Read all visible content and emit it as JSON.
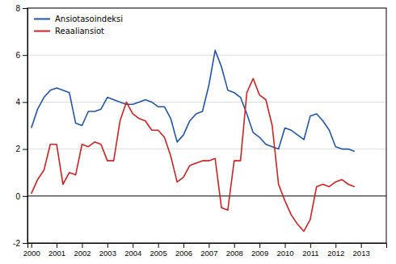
{
  "chart_data": {
    "type": "line",
    "x": [
      2000,
      2000.25,
      2000.5,
      2000.75,
      2001,
      2001.25,
      2001.5,
      2001.75,
      2002,
      2002.25,
      2002.5,
      2002.75,
      2003,
      2003.25,
      2003.5,
      2003.75,
      2004,
      2004.25,
      2004.5,
      2004.75,
      2005,
      2005.25,
      2005.5,
      2005.75,
      2006,
      2006.25,
      2006.5,
      2006.75,
      2007,
      2007.25,
      2007.5,
      2007.75,
      2008,
      2008.25,
      2008.5,
      2008.75,
      2009,
      2009.25,
      2009.5,
      2009.75,
      2010,
      2010.25,
      2010.5,
      2010.75,
      2011,
      2011.25,
      2011.5,
      2011.75,
      2012,
      2012.25,
      2012.5,
      2012.75
    ],
    "xlim": [
      1999.85,
      2014.0
    ],
    "xticks": [
      2000,
      2001,
      2002,
      2003,
      2004,
      2005,
      2006,
      2007,
      2008,
      2009,
      2010,
      2011,
      2012,
      2013
    ],
    "ylim": [
      -2,
      8
    ],
    "yticks": [
      -2,
      0,
      2,
      4,
      6,
      8
    ],
    "grid": "y",
    "legend": "upper left",
    "series": [
      {
        "name": "Ansiotasoindeksi",
        "color": "#2255aa",
        "values": [
          2.9,
          3.7,
          4.2,
          4.5,
          4.6,
          4.5,
          4.4,
          3.1,
          3.0,
          3.6,
          3.6,
          3.7,
          4.2,
          4.1,
          4.0,
          3.9,
          3.9,
          4.0,
          4.1,
          4.0,
          3.8,
          3.8,
          3.3,
          2.3,
          2.6,
          3.2,
          3.5,
          3.6,
          4.7,
          6.2,
          5.5,
          4.5,
          4.4,
          4.2,
          3.5,
          2.7,
          2.5,
          2.2,
          2.1,
          2.0,
          2.9,
          2.8,
          2.6,
          2.4,
          3.4,
          3.5,
          3.2,
          2.8,
          2.1,
          2.0,
          2.0,
          1.9
        ]
      },
      {
        "name": "Reaaliansiot",
        "color": "#cc2222",
        "values": [
          0.1,
          0.7,
          1.1,
          2.2,
          2.2,
          0.5,
          1.0,
          0.9,
          2.2,
          2.1,
          2.3,
          2.2,
          1.5,
          1.5,
          3.2,
          4.0,
          3.5,
          3.3,
          3.2,
          2.8,
          2.8,
          2.5,
          1.7,
          0.6,
          0.8,
          1.3,
          1.4,
          1.5,
          1.5,
          1.6,
          -0.5,
          -0.6,
          1.5,
          1.5,
          4.4,
          5.0,
          4.3,
          4.1,
          3.0,
          0.5,
          -0.2,
          -0.8,
          -1.2,
          -1.5,
          -1.0,
          0.4,
          0.5,
          0.4,
          0.6,
          0.7,
          0.5,
          0.4
        ]
      }
    ]
  }
}
